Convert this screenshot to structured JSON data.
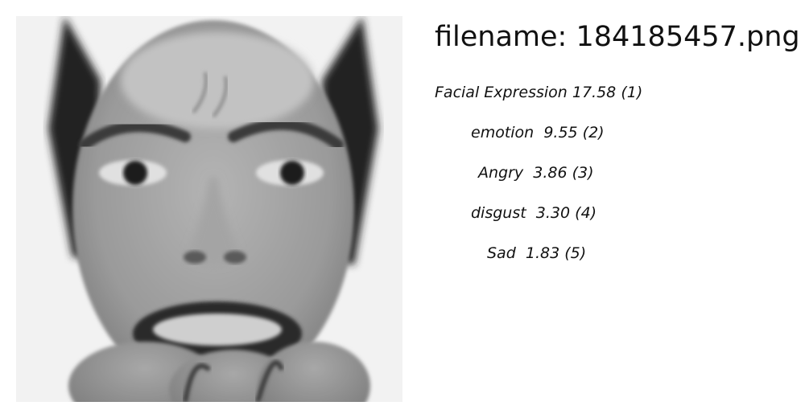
{
  "image": {
    "subject": "grayscale face photo"
  },
  "filename_label": "filename: 184185457.png",
  "labels": [
    {
      "name": "Facial Expression",
      "score": "17.58",
      "rank": "(1)"
    },
    {
      "name": "emotion",
      "score": "9.55",
      "rank": "(2)"
    },
    {
      "name": "Angry",
      "score": "3.86",
      "rank": "(3)"
    },
    {
      "name": "disgust",
      "score": "3.30",
      "rank": "(4)"
    },
    {
      "name": "Sad",
      "score": "1.83",
      "rank": "(5)"
    }
  ]
}
